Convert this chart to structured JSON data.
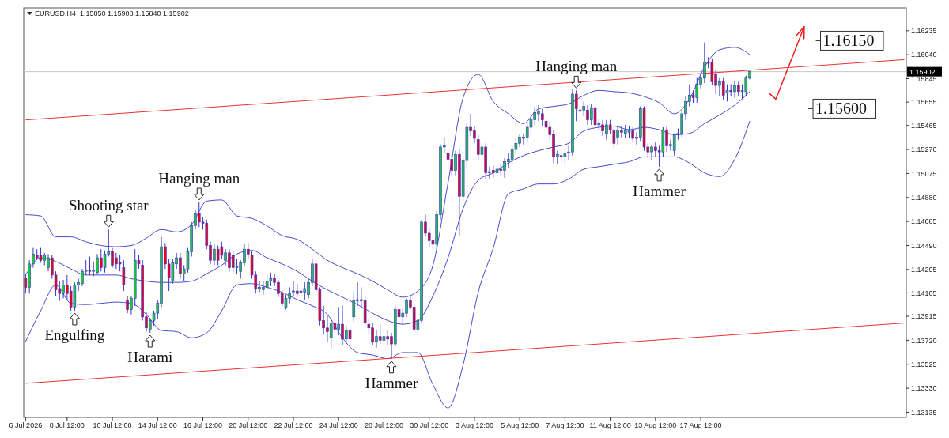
{
  "chart_data": {
    "type": "candlestick",
    "title": "EURUSD,H4  1.15850 1.15908 1.15840 1.15902",
    "categories": [
      "6 Jul 2026",
      null,
      null,
      null,
      null,
      null,
      null,
      null,
      null,
      null,
      null,
      "8 Jul 12:00",
      null,
      null,
      null,
      null,
      null,
      null,
      null,
      null,
      null,
      null,
      null,
      "10 Jul 12:00",
      null,
      null,
      null,
      null,
      null,
      null,
      null,
      null,
      null,
      null,
      null,
      "14 Jul 12:00",
      null,
      null,
      null,
      null,
      null,
      null,
      null,
      null,
      null,
      null,
      null,
      "16 Jul 12:00",
      null,
      null,
      null,
      null,
      null,
      null,
      null,
      null,
      null,
      null,
      null,
      "20 Jul 12:00",
      null,
      null,
      null,
      null,
      null,
      null,
      null,
      null,
      null,
      null,
      null,
      "22 Jul 12:00",
      null,
      null,
      null,
      null,
      null,
      null,
      null,
      null,
      null,
      null,
      null,
      "24 Jul 12:00",
      null,
      null,
      null,
      null,
      null,
      null,
      null,
      null,
      null,
      null,
      null,
      "28 Jul 12:00",
      null,
      null,
      null,
      null,
      null,
      null,
      null,
      null,
      null,
      null,
      null,
      "30 Jul 12:00",
      null,
      null,
      null,
      null,
      null,
      null,
      null,
      null,
      null,
      null,
      null,
      "3 Aug 12:00",
      null,
      null,
      null,
      null,
      null,
      null,
      null,
      null,
      null,
      null,
      null,
      "5 Aug 12:00",
      null,
      null,
      null,
      null,
      null,
      null,
      null,
      null,
      null,
      null,
      null,
      "7 Aug 12:00",
      null,
      null,
      null,
      null,
      null,
      null,
      null,
      null,
      null,
      null,
      null,
      "11 Aug 12:00",
      null,
      null,
      null,
      null,
      null,
      null,
      null,
      null,
      null,
      null,
      null,
      "13 Aug 12:00",
      null,
      null,
      null,
      null,
      null,
      null,
      null,
      null,
      null,
      null,
      null,
      "17 Aug 12:00",
      null,
      null,
      null,
      null,
      null,
      null,
      null,
      null,
      null,
      null,
      null,
      null,
      null,
      null,
      null,
      null,
      null,
      null,
      null,
      null,
      null,
      null,
      null,
      null,
      null,
      null,
      null,
      null,
      null,
      null,
      null,
      null,
      null,
      null,
      null,
      null,
      null,
      null,
      null,
      null,
      null,
      null,
      null,
      null,
      null,
      null,
      null,
      null,
      null,
      null,
      null,
      null,
      null,
      null
    ],
    "ohlc": [
      [
        1.1422,
        1.1426,
        1.141,
        1.1415
      ],
      [
        1.1415,
        1.1437,
        1.141,
        1.1434
      ],
      [
        1.1434,
        1.1447,
        1.1431,
        1.1442
      ],
      [
        1.1441,
        1.1446,
        1.1437,
        1.1439
      ],
      [
        1.1441,
        1.1447,
        1.1435,
        1.1437
      ],
      [
        1.1437,
        1.1443,
        1.1433,
        1.1441
      ],
      [
        1.1431,
        1.1442,
        1.1428,
        1.1439
      ],
      [
        1.1439,
        1.1441,
        1.1422,
        1.1425
      ],
      [
        1.1425,
        1.1428,
        1.1408,
        1.1413
      ],
      [
        1.1414,
        1.142,
        1.1404,
        1.141
      ],
      [
        1.141,
        1.1421,
        1.1406,
        1.1417
      ],
      [
        1.1417,
        1.1425,
        1.1405,
        1.141
      ],
      [
        1.1412,
        1.1416,
        1.1396,
        1.1399
      ],
      [
        1.1399,
        1.1419,
        1.1396,
        1.1417
      ],
      [
        1.1417,
        1.1422,
        1.1412,
        1.1419
      ],
      [
        1.1418,
        1.143,
        1.1416,
        1.1428
      ],
      [
        1.1428,
        1.1437,
        1.1425,
        1.1429
      ],
      [
        1.1429,
        1.144,
        1.1425,
        1.1428
      ],
      [
        1.1428,
        1.1436,
        1.1424,
        1.1429
      ],
      [
        1.1427,
        1.1442,
        1.1426,
        1.1439
      ],
      [
        1.1439,
        1.1446,
        1.1428,
        1.1431
      ],
      [
        1.1431,
        1.1445,
        1.1427,
        1.1442
      ],
      [
        1.1442,
        1.1462,
        1.144,
        1.1444
      ],
      [
        1.1444,
        1.1447,
        1.1431,
        1.1433
      ],
      [
        1.1439,
        1.1443,
        1.143,
        1.1434
      ],
      [
        1.1435,
        1.1441,
        1.1428,
        1.1434
      ],
      [
        1.1431,
        1.1437,
        1.1412,
        1.1417
      ],
      [
        1.1404,
        1.1408,
        1.1394,
        1.1397
      ],
      [
        1.1397,
        1.1408,
        1.1393,
        1.1406
      ],
      [
        1.1406,
        1.1446,
        1.14,
        1.1437
      ],
      [
        1.1437,
        1.1441,
        1.143,
        1.1434
      ],
      [
        1.1433,
        1.1437,
        1.1388,
        1.1391
      ],
      [
        1.1391,
        1.1395,
        1.1379,
        1.1382
      ],
      [
        1.1381,
        1.139,
        1.1378,
        1.1388
      ],
      [
        1.1388,
        1.1396,
        1.1384,
        1.1394
      ],
      [
        1.1394,
        1.1405,
        1.1389,
        1.1402
      ],
      [
        1.1402,
        1.1456,
        1.1399,
        1.1448
      ],
      [
        1.1448,
        1.1451,
        1.143,
        1.1434
      ],
      [
        1.1434,
        1.1438,
        1.1412,
        1.1423
      ],
      [
        1.142,
        1.1438,
        1.1418,
        1.1435
      ],
      [
        1.1434,
        1.1443,
        1.143,
        1.1439
      ],
      [
        1.1439,
        1.1443,
        1.1422,
        1.1426
      ],
      [
        1.1426,
        1.1433,
        1.142,
        1.143
      ],
      [
        1.143,
        1.1447,
        1.1427,
        1.1444
      ],
      [
        1.1444,
        1.1468,
        1.144,
        1.1465
      ],
      [
        1.1465,
        1.1478,
        1.1462,
        1.1475
      ],
      [
        1.1475,
        1.1484,
        1.1464,
        1.1468
      ],
      [
        1.1468,
        1.1472,
        1.1462,
        1.1467
      ],
      [
        1.1467,
        1.147,
        1.1446,
        1.1449
      ],
      [
        1.1449,
        1.1452,
        1.1434,
        1.1437
      ],
      [
        1.1437,
        1.145,
        1.1433,
        1.1446
      ],
      [
        1.1446,
        1.1449,
        1.1433,
        1.1437
      ],
      [
        1.1448,
        1.1452,
        1.1438,
        1.1441
      ],
      [
        1.1437,
        1.1446,
        1.1433,
        1.1443
      ],
      [
        1.1443,
        1.1446,
        1.1428,
        1.1431
      ],
      [
        1.1441,
        1.1445,
        1.1427,
        1.1431
      ],
      [
        1.1431,
        1.1438,
        1.1426,
        1.1432
      ],
      [
        1.1428,
        1.1437,
        1.1422,
        1.1435
      ],
      [
        1.1435,
        1.145,
        1.1432,
        1.1446
      ],
      [
        1.1446,
        1.1451,
        1.1438,
        1.1442
      ],
      [
        1.1441,
        1.1444,
        1.1422,
        1.1425
      ],
      [
        1.1425,
        1.1428,
        1.141,
        1.1414
      ],
      [
        1.1414,
        1.142,
        1.1411,
        1.1415
      ],
      [
        1.1413,
        1.142,
        1.1409,
        1.1415
      ],
      [
        1.1415,
        1.1425,
        1.1413,
        1.142
      ],
      [
        1.142,
        1.1427,
        1.1416,
        1.1422
      ],
      [
        1.1422,
        1.1426,
        1.1416,
        1.1419
      ],
      [
        1.1419,
        1.1421,
        1.1407,
        1.141
      ],
      [
        1.141,
        1.1413,
        1.14,
        1.1402
      ],
      [
        1.1399,
        1.1409,
        1.1397,
        1.1406
      ],
      [
        1.1406,
        1.1415,
        1.1402,
        1.141
      ],
      [
        1.1412,
        1.142,
        1.1408,
        1.1412
      ],
      [
        1.1412,
        1.1418,
        1.1407,
        1.141
      ],
      [
        1.1412,
        1.1417,
        1.1405,
        1.1411
      ],
      [
        1.1411,
        1.1419,
        1.1405,
        1.1414
      ],
      [
        1.1409,
        1.1422,
        1.1406,
        1.1419
      ],
      [
        1.1419,
        1.1438,
        1.1416,
        1.1434
      ],
      [
        1.1434,
        1.1437,
        1.141,
        1.1413
      ],
      [
        1.1413,
        1.1415,
        1.1384,
        1.1388
      ],
      [
        1.1388,
        1.14,
        1.1377,
        1.1382
      ],
      [
        1.1382,
        1.1393,
        1.1371,
        1.1379
      ],
      [
        1.1374,
        1.1388,
        1.1365,
        1.1386
      ],
      [
        1.1386,
        1.1397,
        1.1378,
        1.1381
      ],
      [
        1.1381,
        1.1399,
        1.1376,
        1.1385
      ],
      [
        1.1385,
        1.14,
        1.1368,
        1.1373
      ],
      [
        1.1373,
        1.1384,
        1.1369,
        1.138
      ],
      [
        1.138,
        1.1384,
        1.1368,
        1.1373
      ],
      [
        1.1391,
        1.1412,
        1.1387,
        1.1404
      ],
      [
        1.1404,
        1.1419,
        1.14,
        1.1405
      ],
      [
        1.1405,
        1.1415,
        1.1399,
        1.1404
      ],
      [
        1.1404,
        1.1408,
        1.1383,
        1.1386
      ],
      [
        1.1385,
        1.139,
        1.1377,
        1.1382
      ],
      [
        1.1382,
        1.1386,
        1.1368,
        1.1371
      ],
      [
        1.1371,
        1.138,
        1.1366,
        1.1375
      ],
      [
        1.1375,
        1.1385,
        1.1369,
        1.1372
      ],
      [
        1.1372,
        1.138,
        1.1368,
        1.1375
      ],
      [
        1.1375,
        1.138,
        1.1368,
        1.1373
      ],
      [
        1.1375,
        1.1378,
        1.1357,
        1.1369
      ],
      [
        1.1369,
        1.14,
        1.1367,
        1.1397
      ],
      [
        1.1397,
        1.1402,
        1.1389,
        1.1391
      ],
      [
        1.1391,
        1.1398,
        1.1386,
        1.1394
      ],
      [
        1.1394,
        1.1406,
        1.1391,
        1.1404
      ],
      [
        1.1404,
        1.1408,
        1.1397,
        1.1399
      ],
      [
        1.1399,
        1.1402,
        1.1378,
        1.1381
      ],
      [
        1.1381,
        1.139,
        1.1376,
        1.1388
      ],
      [
        1.1388,
        1.147,
        1.1386,
        1.1468
      ],
      [
        1.1468,
        1.1474,
        1.1456,
        1.1459
      ],
      [
        1.1459,
        1.1463,
        1.1448,
        1.1453
      ],
      [
        1.1453,
        1.1456,
        1.1442,
        1.145
      ],
      [
        1.145,
        1.1477,
        1.1446,
        1.1474
      ],
      [
        1.1474,
        1.1531,
        1.147,
        1.1529
      ],
      [
        1.1529,
        1.1537,
        1.1524,
        1.153
      ],
      [
        1.1524,
        1.1528,
        1.1512,
        1.1519
      ],
      [
        1.1519,
        1.1523,
        1.1505,
        1.151
      ],
      [
        1.151,
        1.1526,
        1.1506,
        1.1523
      ],
      [
        1.1523,
        1.1527,
        1.1457,
        1.1489
      ],
      [
        1.1489,
        1.1521,
        1.1486,
        1.1518
      ],
      [
        1.1518,
        1.1549,
        1.1512,
        1.1545
      ],
      [
        1.1545,
        1.1556,
        1.1538,
        1.1542
      ],
      [
        1.1542,
        1.1546,
        1.1532,
        1.1536
      ],
      [
        1.1535,
        1.1539,
        1.1519,
        1.1523
      ],
      [
        1.1523,
        1.1533,
        1.1519,
        1.1529
      ],
      [
        1.1529,
        1.1532,
        1.1503,
        1.1508
      ],
      [
        1.1508,
        1.1513,
        1.1503,
        1.1509
      ],
      [
        1.151,
        1.1514,
        1.1504,
        1.1508
      ],
      [
        1.1508,
        1.1514,
        1.1502,
        1.1511
      ],
      [
        1.1511,
        1.1515,
        1.1506,
        1.151
      ],
      [
        1.151,
        1.152,
        1.1504,
        1.1517
      ],
      [
        1.1517,
        1.1524,
        1.1512,
        1.1519
      ],
      [
        1.1519,
        1.153,
        1.1515,
        1.1527
      ],
      [
        1.1527,
        1.1536,
        1.1523,
        1.1532
      ],
      [
        1.1532,
        1.1539,
        1.1529,
        1.1537
      ],
      [
        1.1536,
        1.154,
        1.1531,
        1.1537
      ],
      [
        1.1537,
        1.1548,
        1.1533,
        1.1545
      ],
      [
        1.1545,
        1.1555,
        1.1541,
        1.1551
      ],
      [
        1.1551,
        1.1562,
        1.1547,
        1.1557
      ],
      [
        1.1556,
        1.1563,
        1.155,
        1.1558
      ],
      [
        1.1556,
        1.156,
        1.1546,
        1.1551
      ],
      [
        1.155,
        1.1553,
        1.1541,
        1.1545
      ],
      [
        1.1545,
        1.155,
        1.1535,
        1.1539
      ],
      [
        1.1539,
        1.1543,
        1.1516,
        1.1521
      ],
      [
        1.1521,
        1.1526,
        1.1515,
        1.1523
      ],
      [
        1.1522,
        1.1526,
        1.1517,
        1.1521
      ],
      [
        1.1521,
        1.1527,
        1.1516,
        1.1524
      ],
      [
        1.1524,
        1.153,
        1.1518,
        1.1525
      ],
      [
        1.1525,
        1.1576,
        1.1522,
        1.1572
      ],
      [
        1.1572,
        1.1575,
        1.155,
        1.156
      ],
      [
        1.1559,
        1.1563,
        1.1552,
        1.1558
      ],
      [
        1.1559,
        1.1566,
        1.1554,
        1.1562
      ],
      [
        1.1559,
        1.1563,
        1.1547,
        1.1551
      ],
      [
        1.1551,
        1.1564,
        1.1547,
        1.1561
      ],
      [
        1.1561,
        1.1564,
        1.1545,
        1.1547
      ],
      [
        1.1547,
        1.1552,
        1.1543,
        1.1548
      ],
      [
        1.1547,
        1.1551,
        1.1538,
        1.1542
      ],
      [
        1.154,
        1.1551,
        1.1535,
        1.1547
      ],
      [
        1.1547,
        1.1551,
        1.154,
        1.1543
      ],
      [
        1.1542,
        1.1545,
        1.1527,
        1.1532
      ],
      [
        1.1537,
        1.1546,
        1.1531,
        1.1542
      ],
      [
        1.1542,
        1.1546,
        1.1536,
        1.1541
      ],
      [
        1.154,
        1.1547,
        1.1536,
        1.1543
      ],
      [
        1.1541,
        1.1546,
        1.1536,
        1.1542
      ],
      [
        1.1542,
        1.1545,
        1.1533,
        1.1536
      ],
      [
        1.1536,
        1.1541,
        1.1531,
        1.1537
      ],
      [
        1.1537,
        1.1562,
        1.1534,
        1.156
      ],
      [
        1.156,
        1.1562,
        1.1526,
        1.1529
      ],
      [
        1.1529,
        1.1532,
        1.152,
        1.1525
      ],
      [
        1.1525,
        1.1531,
        1.1518,
        1.1529
      ],
      [
        1.1529,
        1.1533,
        1.1521,
        1.1526
      ],
      [
        1.1526,
        1.153,
        1.1513,
        1.1525
      ],
      [
        1.1525,
        1.1545,
        1.1521,
        1.1543
      ],
      [
        1.1543,
        1.1546,
        1.1525,
        1.153
      ],
      [
        1.153,
        1.1535,
        1.1526,
        1.1531
      ],
      [
        1.1526,
        1.154,
        1.1522,
        1.1539
      ],
      [
        1.1539,
        1.1544,
        1.1535,
        1.154
      ],
      [
        1.154,
        1.1558,
        1.1537,
        1.1556
      ],
      [
        1.1556,
        1.157,
        1.1551,
        1.1566
      ],
      [
        1.1566,
        1.158,
        1.1562,
        1.1571
      ],
      [
        1.1571,
        1.1575,
        1.1565,
        1.1569
      ],
      [
        1.1569,
        1.1585,
        1.1565,
        1.158
      ],
      [
        1.158,
        1.1588,
        1.1576,
        1.1585
      ],
      [
        1.1585,
        1.1614,
        1.1581,
        1.1598
      ],
      [
        1.1598,
        1.1602,
        1.1593,
        1.1597
      ],
      [
        1.1598,
        1.1601,
        1.1579,
        1.1582
      ],
      [
        1.1588,
        1.1592,
        1.1572,
        1.1579
      ],
      [
        1.1579,
        1.1585,
        1.157,
        1.1582
      ],
      [
        1.1582,
        1.1585,
        1.1567,
        1.1571
      ],
      [
        1.1573,
        1.158,
        1.1566,
        1.1575
      ],
      [
        1.1575,
        1.158,
        1.157,
        1.1574
      ],
      [
        1.1574,
        1.1583,
        1.1569,
        1.1579
      ],
      [
        1.1579,
        1.1582,
        1.157,
        1.1574
      ],
      [
        1.1574,
        1.158,
        1.1568,
        1.1575
      ],
      [
        1.1574,
        1.1587,
        1.157,
        1.1585
      ],
      [
        1.1585,
        1.15908,
        1.1584,
        1.15902
      ],
      null,
      null,
      null,
      null,
      null,
      null,
      null,
      null,
      null,
      null,
      null,
      null,
      null,
      null,
      null,
      null,
      null,
      null,
      null,
      null,
      null,
      null,
      null,
      null,
      null,
      null,
      null,
      null,
      null,
      null,
      null,
      null,
      null,
      null,
      null,
      null,
      null,
      null,
      null,
      null,
      null
    ],
    "color": "#3434c8",
    "series": [
      {
        "type": "line",
        "color": "#4848d0",
        "values": [
          1.1474,
          null,
          null,
          null,
          1.1473,
          null,
          null,
          null,
          1.1456,
          null,
          null,
          null,
          1.1456,
          null,
          null,
          null,
          1.1452,
          null,
          null,
          null,
          1.1449,
          null,
          null,
          null,
          1.1448,
          null,
          null,
          null,
          1.1449,
          null,
          null,
          null,
          1.1455,
          null,
          null,
          null,
          1.1462,
          null,
          null,
          null,
          1.146,
          null,
          null,
          null,
          1.1466,
          null,
          null,
          null,
          1.1485,
          null,
          null,
          null,
          1.1486,
          null,
          null,
          null,
          1.1473,
          null,
          null,
          null,
          1.1471,
          null,
          null,
          null,
          1.1465,
          null,
          null,
          null,
          1.1457,
          null,
          null,
          null,
          1.1454,
          null,
          null,
          null,
          1.1446,
          null,
          null,
          null,
          1.1437,
          null,
          null,
          null,
          1.1431,
          null,
          null,
          null,
          1.1426,
          null,
          null,
          null,
          1.142,
          null,
          null,
          null,
          1.1413,
          null,
          null,
          null,
          1.1407,
          null,
          null,
          null,
          1.1412,
          null,
          null,
          null,
          1.1433,
          null,
          null,
          null,
          1.15,
          null,
          null,
          null,
          1.1569,
          null,
          null,
          null,
          1.1588,
          null,
          null,
          null,
          1.1566,
          null,
          null,
          null,
          1.1556,
          null,
          null,
          null,
          1.1548,
          null,
          null,
          null,
          1.156,
          null,
          null,
          null,
          1.1562,
          null,
          null,
          null,
          1.1564,
          null,
          null,
          null,
          1.1571,
          null,
          null,
          null,
          1.1575,
          null,
          null,
          null,
          1.1574,
          null,
          null,
          null,
          1.1573,
          null,
          null,
          null,
          1.157,
          null,
          null,
          null,
          1.1565,
          null,
          null,
          null,
          1.1556,
          null,
          null,
          null,
          1.1568,
          null,
          null,
          null,
          1.1594,
          null,
          null,
          null,
          1.1608,
          null,
          null,
          null,
          1.161,
          null,
          null,
          null,
          1.1604,
          null,
          null,
          null,
          null,
          null,
          null,
          null,
          null,
          null,
          null,
          null,
          null,
          null,
          null,
          null,
          null,
          null,
          null,
          null,
          null,
          null,
          null,
          null,
          null,
          null,
          null,
          null,
          null,
          null,
          null,
          null,
          null,
          null,
          null,
          null,
          null,
          null,
          null,
          null,
          null,
          null
        ]
      },
      {
        "type": "line",
        "color": "#4848d0",
        "values": [
          1.1425,
          null,
          null,
          null,
          1.1439,
          null,
          null,
          null,
          1.1436,
          null,
          null,
          null,
          1.143,
          null,
          null,
          null,
          1.1425,
          null,
          null,
          null,
          1.1425,
          null,
          null,
          null,
          1.1425,
          null,
          null,
          null,
          1.1422,
          null,
          null,
          null,
          1.142,
          null,
          null,
          null,
          1.1419,
          null,
          null,
          null,
          1.1419,
          null,
          null,
          null,
          1.142,
          null,
          null,
          null,
          1.1426,
          null,
          null,
          null,
          1.1433,
          null,
          null,
          null,
          1.1442,
          null,
          null,
          null,
          1.1445,
          null,
          null,
          null,
          1.1439,
          null,
          null,
          null,
          1.1434,
          null,
          null,
          null,
          1.1428,
          null,
          null,
          null,
          1.142,
          null,
          null,
          null,
          1.1413,
          null,
          null,
          null,
          1.1407,
          null,
          null,
          null,
          1.1401,
          null,
          null,
          null,
          1.1394,
          null,
          null,
          null,
          1.1388,
          null,
          null,
          null,
          1.1385,
          null,
          null,
          null,
          1.1388,
          null,
          null,
          null,
          1.1408,
          null,
          null,
          null,
          1.1439,
          null,
          null,
          null,
          1.1479,
          null,
          null,
          null,
          1.1502,
          null,
          null,
          null,
          1.1508,
          null,
          null,
          null,
          1.1516,
          null,
          null,
          null,
          1.1522,
          null,
          null,
          null,
          1.1526,
          null,
          null,
          null,
          1.1529,
          null,
          null,
          null,
          1.1532,
          null,
          null,
          null,
          1.1542,
          null,
          null,
          null,
          1.1545,
          null,
          null,
          null,
          1.1546,
          null,
          null,
          null,
          1.1543,
          null,
          null,
          null,
          1.1545,
          null,
          null,
          null,
          1.1543,
          null,
          null,
          null,
          1.1539,
          null,
          null,
          null,
          1.154,
          null,
          null,
          null,
          1.1548,
          null,
          null,
          null,
          1.1555,
          null,
          null,
          null,
          1.1563,
          null,
          null,
          null,
          1.1574,
          null,
          null,
          null,
          null,
          null,
          null,
          null,
          null,
          null,
          null,
          null,
          null,
          null,
          null,
          null,
          null,
          null,
          null,
          null,
          null,
          null,
          null,
          null,
          null,
          null,
          null,
          null,
          null,
          null,
          null,
          null,
          null,
          null,
          null,
          null,
          null,
          null,
          null,
          null,
          null,
          null
        ]
      },
      {
        "type": "line",
        "color": "#4848d0",
        "values": [
          1.1371,
          null,
          null,
          null,
          1.1396,
          null,
          null,
          null,
          1.1417,
          null,
          null,
          null,
          1.1402,
          null,
          null,
          null,
          1.1401,
          null,
          null,
          null,
          1.1402,
          null,
          null,
          null,
          1.1403,
          null,
          null,
          null,
          1.1402,
          null,
          null,
          null,
          1.1393,
          null,
          null,
          null,
          1.138,
          null,
          null,
          null,
          1.1379,
          null,
          null,
          null,
          1.1374,
          null,
          null,
          null,
          1.1378,
          null,
          null,
          null,
          1.1396,
          null,
          null,
          null,
          1.1417,
          null,
          null,
          null,
          1.1418,
          null,
          null,
          null,
          1.1415,
          null,
          null,
          null,
          1.1411,
          null,
          null,
          null,
          1.1405,
          null,
          null,
          null,
          1.14,
          null,
          null,
          null,
          1.1393,
          null,
          null,
          null,
          1.1374,
          null,
          null,
          null,
          1.1362,
          null,
          null,
          null,
          1.136,
          null,
          null,
          null,
          1.1357,
          null,
          null,
          null,
          1.1362,
          null,
          null,
          null,
          1.1362,
          null,
          null,
          null,
          1.1336,
          null,
          null,
          null,
          1.1317,
          null,
          null,
          null,
          1.1352,
          null,
          null,
          null,
          1.1411,
          null,
          null,
          null,
          1.1447,
          null,
          null,
          null,
          1.1491,
          null,
          null,
          null,
          1.1495,
          null,
          null,
          null,
          1.1499,
          null,
          null,
          null,
          1.1499,
          null,
          null,
          null,
          1.1503,
          null,
          null,
          null,
          1.1511,
          null,
          null,
          null,
          1.1513,
          null,
          null,
          null,
          1.1515,
          null,
          null,
          null,
          1.1517,
          null,
          null,
          null,
          1.1521,
          null,
          null,
          null,
          1.1521,
          null,
          null,
          null,
          1.1521,
          null,
          null,
          null,
          1.1516,
          null,
          null,
          null,
          1.1508,
          null,
          null,
          null,
          1.1505,
          null,
          null,
          null,
          1.1519,
          null,
          null,
          null,
          1.155,
          null,
          null,
          null,
          null,
          null,
          null,
          null,
          null,
          null,
          null,
          null,
          null,
          null,
          null,
          null,
          null,
          null,
          null,
          null,
          null,
          null,
          null,
          null,
          null,
          null,
          null,
          null,
          null,
          null,
          null,
          null,
          null,
          null,
          null,
          null,
          null,
          null,
          null,
          null,
          null,
          null
        ]
      },
      {
        "type": "line",
        "color": "#f03030",
        "values": [
          1.1551,
          null,
          null,
          null,
          null,
          null,
          null,
          null,
          null,
          null,
          null,
          null,
          null,
          null,
          null,
          null,
          null,
          null,
          null,
          null,
          null,
          null,
          null,
          null,
          null,
          null,
          null,
          null,
          null,
          null,
          null,
          null,
          null,
          null,
          null,
          null,
          null,
          null,
          null,
          null,
          null,
          null,
          null,
          null,
          null,
          null,
          null,
          null,
          null,
          null,
          null,
          null,
          null,
          null,
          null,
          null,
          null,
          null,
          null,
          null,
          null,
          null,
          null,
          null,
          null,
          null,
          null,
          null,
          null,
          null,
          null,
          null,
          null,
          null,
          null,
          null,
          null,
          null,
          null,
          null,
          null,
          null,
          null,
          null,
          null,
          null,
          null,
          null,
          null,
          null,
          null,
          null,
          null,
          null,
          null,
          null,
          null,
          null,
          null,
          null,
          null,
          null,
          null,
          null,
          null,
          null,
          null,
          null,
          null,
          null,
          null,
          null,
          null,
          null,
          null,
          null,
          null,
          null,
          null,
          null,
          null,
          null,
          null,
          null,
          null,
          null,
          null,
          null,
          null,
          null,
          null,
          null,
          null,
          null,
          null,
          null,
          null,
          null,
          null,
          null,
          null,
          null,
          null,
          null,
          null,
          null,
          null,
          null,
          null,
          null,
          null,
          null,
          null,
          null,
          null,
          null,
          null,
          null,
          null,
          null,
          null,
          null,
          null,
          null,
          null,
          null,
          null,
          null,
          null,
          null,
          null,
          null,
          null,
          null,
          null,
          null,
          null,
          null,
          null,
          null,
          null,
          null,
          null,
          null,
          null,
          null,
          null,
          null,
          null,
          null,
          null,
          null,
          null,
          null,
          null,
          null,
          null,
          null,
          null,
          null,
          null,
          null,
          null,
          null,
          null,
          null,
          null,
          null,
          null,
          null,
          null,
          null,
          null,
          null,
          null,
          null,
          null,
          null,
          null,
          null,
          null,
          null,
          null,
          null,
          null,
          null,
          null,
          null,
          null,
          null,
          null,
          null,
          null,
          1.16
        ]
      },
      {
        "type": "line",
        "color": "#f03030",
        "values": [
          1.1337,
          null,
          null,
          null,
          null,
          null,
          null,
          null,
          null,
          null,
          null,
          null,
          null,
          null,
          null,
          null,
          null,
          null,
          null,
          null,
          null,
          null,
          null,
          null,
          null,
          null,
          null,
          null,
          null,
          null,
          null,
          null,
          null,
          null,
          null,
          null,
          null,
          null,
          null,
          null,
          null,
          null,
          null,
          null,
          null,
          null,
          null,
          null,
          null,
          null,
          null,
          null,
          null,
          null,
          null,
          null,
          null,
          null,
          null,
          null,
          null,
          null,
          null,
          null,
          null,
          null,
          null,
          null,
          null,
          null,
          null,
          null,
          null,
          null,
          null,
          null,
          null,
          null,
          null,
          null,
          null,
          null,
          null,
          null,
          null,
          null,
          null,
          null,
          null,
          null,
          null,
          null,
          null,
          null,
          null,
          null,
          null,
          null,
          null,
          null,
          null,
          null,
          null,
          null,
          null,
          null,
          null,
          null,
          null,
          null,
          null,
          null,
          null,
          null,
          null,
          null,
          null,
          null,
          null,
          null,
          null,
          null,
          null,
          null,
          null,
          null,
          null,
          null,
          null,
          null,
          null,
          null,
          null,
          null,
          null,
          null,
          null,
          null,
          null,
          null,
          null,
          null,
          null,
          null,
          null,
          null,
          null,
          null,
          null,
          null,
          null,
          null,
          null,
          null,
          null,
          null,
          null,
          null,
          null,
          null,
          null,
          null,
          null,
          null,
          null,
          null,
          null,
          null,
          null,
          null,
          null,
          null,
          null,
          null,
          null,
          null,
          null,
          null,
          null,
          null,
          null,
          null,
          null,
          null,
          null,
          null,
          null,
          null,
          null,
          null,
          null,
          null,
          null,
          null,
          null,
          null,
          null,
          null,
          null,
          null,
          null,
          null,
          null,
          null,
          null,
          null,
          null,
          null,
          null,
          null,
          null,
          null,
          null,
          null,
          null,
          null,
          null,
          null,
          null,
          null,
          null,
          null,
          null,
          null,
          null,
          null,
          null,
          null,
          null,
          null,
          null,
          null,
          null,
          1.1386
        ]
      }
    ],
    "ylim": [
      1.13093,
      1.1642
    ],
    "yticks": [
      1.16235,
      {
        "value": 1.1604,
        "label": "1.16040"
      },
      1.15845,
      1.15655,
      1.15465,
      {
        "value": 1.1527,
        "label": "1.15270"
      },
      1.15075,
      {
        "value": 1.1488,
        "label": "1.14880"
      },
      1.14685,
      {
        "value": 1.1449,
        "label": "1.14490"
      },
      1.14295,
      1.14105,
      1.13915,
      {
        "value": 1.1372,
        "label": "1.13720"
      },
      1.13525,
      {
        "value": 1.1333,
        "label": "1.13330"
      },
      1.13135
    ],
    "ref_lines": [
      {
        "axis": "y",
        "value": 1.15902,
        "label": "1.15902",
        "color": "#c8c8c8"
      }
    ],
    "annotations": [
      "Engulfing",
      "Shooting star",
      "Harami",
      "Hanging man",
      "Hammer",
      "Hanging man",
      "Hammer",
      "1.16150",
      "1.15600"
    ]
  }
}
